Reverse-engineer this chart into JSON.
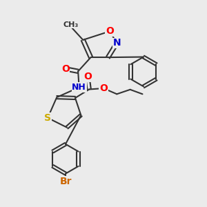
{
  "bg_color": "#ebebeb",
  "bond_color": "#333333",
  "bond_width": 1.5,
  "atom_colors": {
    "O": "#ff0000",
    "N": "#0000cc",
    "S": "#ccaa00",
    "Br": "#cc6600",
    "C": "#333333"
  },
  "font_size": 9,
  "fig_size": [
    3.0,
    3.0
  ],
  "dpi": 100
}
